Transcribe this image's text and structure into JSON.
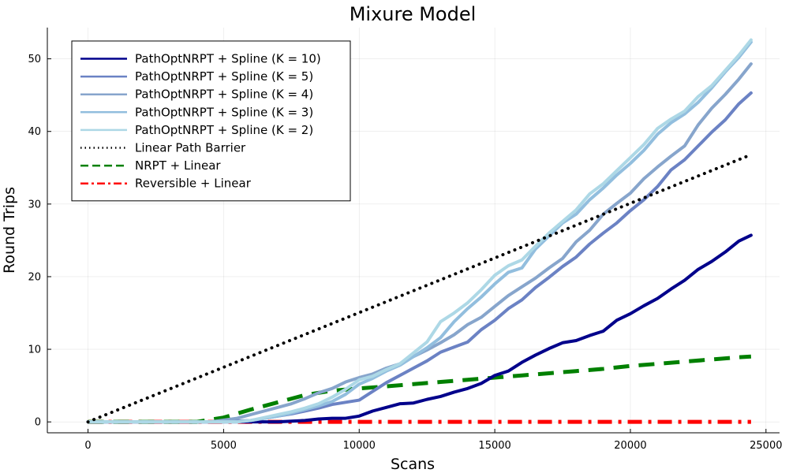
{
  "chart_data": {
    "type": "line",
    "title": "Mixure Model",
    "xlabel": "Scans",
    "ylabel": "Round Trips",
    "xlim": [
      -1500,
      25500
    ],
    "ylim": [
      -1.5,
      54.3
    ],
    "xticks": [
      0,
      5000,
      10000,
      15000,
      20000,
      25000
    ],
    "xtick_labels": [
      "0",
      "5000",
      "10000",
      "15000",
      "20000",
      "25000"
    ],
    "yticks": [
      0,
      10,
      20,
      30,
      40,
      50
    ],
    "ytick_labels": [
      "0",
      "10",
      "20",
      "30",
      "40",
      "50"
    ],
    "grid": true,
    "legend_position": "top-left",
    "series": [
      {
        "name": "PathOptNRPT + Spline (K = 10)",
        "color": "#00008B",
        "style": "solid",
        "x": [
          0,
          5000,
          6500,
          7000,
          7500,
          8000,
          8500,
          9000,
          9500,
          10000,
          10500,
          11000,
          11500,
          12000,
          12500,
          13000,
          13500,
          14000,
          14500,
          15000,
          15500,
          16000,
          16500,
          17000,
          17500,
          18000,
          18500,
          19000,
          19500,
          20000,
          20500,
          21000,
          21500,
          22000,
          22500,
          23000,
          23500,
          24000,
          24450
        ],
        "y": [
          0,
          0,
          0,
          0,
          0.1,
          0.2,
          0.4,
          0.5,
          0.5,
          0.8,
          1.5,
          2.0,
          2.5,
          2.6,
          3.1,
          3.5,
          4.1,
          4.6,
          5.3,
          6.4,
          7.0,
          8.2,
          9.2,
          10.1,
          10.9,
          11.2,
          11.9,
          12.5,
          14.0,
          14.9,
          16.0,
          17.0,
          18.3,
          19.5,
          21.0,
          22.1,
          23.4,
          24.9,
          25.7
        ]
      },
      {
        "name": "PathOptNRPT + Spline (K = 5)",
        "color": "#6B82C4",
        "style": "solid",
        "x": [
          0,
          5000,
          6000,
          6500,
          7000,
          7500,
          8000,
          8500,
          9000,
          9500,
          10000,
          10500,
          11000,
          11500,
          12000,
          12500,
          13000,
          13500,
          14000,
          14500,
          15000,
          15500,
          16000,
          16500,
          17000,
          17500,
          18000,
          18500,
          19000,
          19500,
          20000,
          20500,
          21000,
          21500,
          22000,
          22500,
          23000,
          23500,
          24000,
          24450
        ],
        "y": [
          0,
          0,
          0.2,
          0.5,
          0.8,
          1.1,
          1.5,
          1.9,
          2.4,
          2.7,
          3.0,
          4.2,
          5.4,
          6.4,
          7.4,
          8.4,
          9.6,
          10.3,
          11.0,
          12.7,
          14.0,
          15.6,
          16.8,
          18.5,
          19.9,
          21.4,
          22.7,
          24.5,
          26.0,
          27.4,
          29.1,
          30.6,
          32.4,
          34.7,
          36.1,
          38.0,
          39.9,
          41.6,
          43.8,
          45.3
        ]
      },
      {
        "name": "PathOptNRPT + Spline (K = 4)",
        "color": "#87A5CC",
        "style": "solid",
        "x": [
          0,
          4500,
          5500,
          6000,
          6500,
          7000,
          7500,
          8000,
          8500,
          9000,
          9500,
          10000,
          10500,
          11000,
          11500,
          12000,
          12500,
          13000,
          13500,
          14000,
          14500,
          15000,
          15500,
          16000,
          16500,
          17000,
          17500,
          18000,
          18500,
          19000,
          19500,
          20000,
          20500,
          21000,
          21500,
          22000,
          22500,
          23000,
          23500,
          24000,
          24450
        ],
        "y": [
          0,
          0,
          0.5,
          1.0,
          1.5,
          2.0,
          2.5,
          3.2,
          4.0,
          4.6,
          5.5,
          6.1,
          6.6,
          7.4,
          8.0,
          9.0,
          9.9,
          10.9,
          12.0,
          13.4,
          14.4,
          15.9,
          17.4,
          18.6,
          19.8,
          21.2,
          22.5,
          24.8,
          26.4,
          28.6,
          30.1,
          31.5,
          33.5,
          35.1,
          36.6,
          38.0,
          40.9,
          43.2,
          45.1,
          47.2,
          49.3
        ]
      },
      {
        "name": "PathOptNRPT + Spline (K = 3)",
        "color": "#92BEDE",
        "style": "solid",
        "x": [
          0,
          5500,
          6000,
          6500,
          7000,
          7500,
          8000,
          8500,
          9000,
          9500,
          10000,
          10500,
          11000,
          11500,
          12000,
          12500,
          13000,
          13500,
          14000,
          14500,
          15000,
          15500,
          16000,
          16500,
          17000,
          17500,
          18000,
          18500,
          19000,
          19500,
          20000,
          20500,
          21000,
          21500,
          22000,
          22500,
          23000,
          23500,
          24000,
          24450
        ],
        "y": [
          0,
          0,
          0.2,
          0.5,
          0.8,
          1.2,
          1.7,
          2.2,
          2.8,
          3.8,
          5.2,
          6.0,
          7.0,
          7.8,
          9.0,
          10.2,
          11.6,
          13.8,
          15.6,
          17.2,
          19.0,
          20.6,
          21.2,
          23.8,
          25.6,
          27.4,
          28.6,
          30.6,
          32.2,
          34.0,
          35.6,
          37.4,
          39.6,
          41.2,
          42.4,
          44.0,
          46.0,
          48.2,
          50.2,
          52.3
        ]
      },
      {
        "name": "PathOptNRPT + Spline (K = 2)",
        "color": "#ADD8E6",
        "style": "solid",
        "x": [
          0,
          5500,
          6000,
          6500,
          7000,
          7500,
          8000,
          8500,
          9000,
          9500,
          10000,
          10500,
          11000,
          11500,
          12000,
          12500,
          13000,
          13500,
          14000,
          14500,
          15000,
          15500,
          16000,
          16500,
          17000,
          17500,
          18000,
          18500,
          19000,
          19500,
          20000,
          20500,
          21000,
          21500,
          22000,
          22500,
          23000,
          23500,
          24000,
          24450
        ],
        "y": [
          0,
          0,
          0.2,
          0.6,
          1.0,
          1.4,
          1.9,
          2.5,
          3.4,
          4.5,
          5.8,
          6.3,
          7.2,
          8.0,
          9.5,
          11.0,
          13.8,
          15.0,
          16.4,
          18.2,
          20.2,
          21.5,
          22.3,
          24.2,
          26.0,
          27.6,
          29.2,
          31.4,
          32.8,
          34.6,
          36.4,
          38.2,
          40.4,
          41.7,
          42.8,
          44.8,
          46.3,
          48.4,
          50.5,
          52.6
        ]
      },
      {
        "name": "Linear Path Barrier",
        "color": "#000000",
        "style": "dotted",
        "x": [
          0,
          24450
        ],
        "y": [
          0,
          36.8
        ]
      },
      {
        "name": "NRPT + Linear",
        "color": "#008000",
        "style": "dashed",
        "x": [
          0,
          4000,
          5000,
          6000,
          7000,
          8000,
          9000,
          10000,
          11000,
          12000,
          13000,
          14000,
          15000,
          16000,
          17000,
          18000,
          19000,
          20000,
          21000,
          22000,
          23000,
          24000,
          24450
        ],
        "y": [
          0,
          0,
          0.6,
          1.7,
          2.7,
          3.7,
          4.3,
          4.6,
          4.9,
          5.2,
          5.5,
          5.8,
          6.1,
          6.4,
          6.7,
          7.0,
          7.3,
          7.7,
          8.0,
          8.3,
          8.6,
          8.9,
          9.0
        ]
      },
      {
        "name": "Reversible + Linear",
        "color": "#FF0000",
        "style": "dashdot",
        "x": [
          0,
          24450
        ],
        "y": [
          0,
          0
        ]
      }
    ]
  }
}
